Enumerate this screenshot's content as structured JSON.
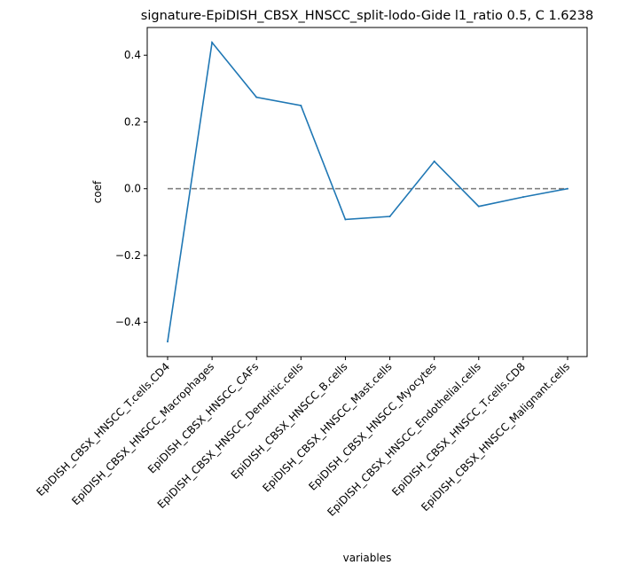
{
  "chart_data": {
    "type": "line",
    "title": "signature-EpiDISH_CBSX_HNSCC_split-lodo-Gide l1_ratio 0.5, C 1.6238",
    "xlabel": "variables",
    "ylabel": "coef",
    "categories": [
      "EpiDISH_CBSX_HNSCC_T.cells.CD4",
      "EpiDISH_CBSX_HNSCC_Macrophages",
      "EpiDISH_CBSX_HNSCC_CAFs",
      "EpiDISH_CBSX_HNSCC_Dendritic.cells",
      "EpiDISH_CBSX_HNSCC_B.cells",
      "EpiDISH_CBSX_HNSCC_Mast.cells",
      "EpiDISH_CBSX_HNSCC_Myocytes",
      "EpiDISH_CBSX_HNSCC_Endothelial.cells",
      "EpiDISH_CBSX_HNSCC_T.cells.CD8",
      "EpiDISH_CBSX_HNSCC_Malignant.cells"
    ],
    "series": [
      {
        "values": [
          -0.458,
          0.438,
          0.274,
          0.249,
          -0.092,
          -0.083,
          0.082,
          -0.053,
          -0.025,
          0.0
        ],
        "color": "#1f77b4"
      }
    ],
    "reference_line": {
      "y": 0,
      "style": "dashed",
      "color": "#808080"
    },
    "yticks": [
      -0.4,
      -0.2,
      0.0,
      0.2,
      0.4
    ],
    "ytick_labels": [
      "−0.4",
      "−0.2",
      "0.0",
      "0.2",
      "0.4"
    ],
    "ylim": [
      -0.503,
      0.483
    ],
    "grid": false,
    "legend": "none"
  }
}
